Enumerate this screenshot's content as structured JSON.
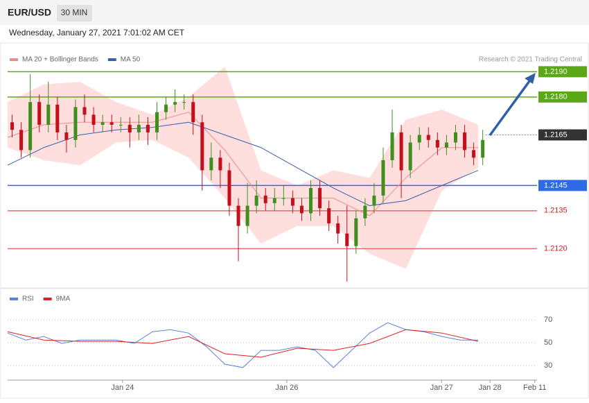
{
  "header": {
    "symbol": "EUR/USD",
    "timeframe": "30 MIN",
    "timestamp": "Wednesday, January 27, 2021 7:01:02 AM CET"
  },
  "chart_data": [
    {
      "type": "candlestick",
      "credit": "Research © 2021 Trading Central",
      "xlim": [
        0,
        117
      ],
      "ylim": [
        1.21045,
        1.21923
      ],
      "up_color": "#3f8f1f",
      "down_color": "#c4101c",
      "x": [
        1,
        3,
        5,
        7,
        9,
        11,
        13,
        15,
        17,
        19,
        21,
        23,
        25,
        27,
        29,
        31,
        33,
        35,
        37,
        39,
        41,
        43,
        45,
        47,
        49,
        51,
        53,
        55,
        57,
        59,
        61,
        63,
        65,
        67,
        69,
        71,
        73,
        75,
        77,
        79,
        81,
        83,
        85,
        87,
        89,
        91,
        93,
        95,
        97,
        99,
        101,
        103,
        105
      ],
      "open": [
        1.217,
        1.2167,
        1.2159,
        1.2178,
        1.2169,
        1.2177,
        1.2166,
        1.2163,
        1.2176,
        1.2173,
        1.2169,
        1.217,
        1.2169,
        1.2169,
        1.2166,
        1.2169,
        1.2166,
        1.2174,
        1.2177,
        1.2178,
        1.2178,
        1.217,
        1.2151,
        1.2156,
        1.2151,
        1.2137,
        1.2129,
        1.2137,
        1.2141,
        1.2138,
        1.214,
        1.214,
        1.2137,
        1.2134,
        1.2144,
        1.2136,
        1.213,
        1.2126,
        1.2121,
        1.2132,
        1.2137,
        1.2141,
        1.2155,
        1.2166,
        1.2151,
        1.2162,
        1.2165,
        1.2163,
        1.216,
        1.2162,
        1.2166,
        1.2159,
        1.2156
      ],
      "high": [
        1.2173,
        1.217,
        1.2189,
        1.2181,
        1.2186,
        1.218,
        1.2169,
        1.2179,
        1.2181,
        1.2176,
        1.2173,
        1.2173,
        1.2172,
        1.2172,
        1.2173,
        1.2172,
        1.2178,
        1.218,
        1.2183,
        1.2181,
        1.2181,
        1.2173,
        1.2162,
        1.2159,
        1.2154,
        1.214,
        1.2146,
        1.2147,
        1.2144,
        1.2144,
        1.2145,
        1.2143,
        1.214,
        1.2147,
        1.2147,
        1.2139,
        1.2133,
        1.2137,
        1.2135,
        1.214,
        1.2146,
        1.216,
        1.2175,
        1.2169,
        1.2165,
        1.2168,
        1.2168,
        1.2166,
        1.2165,
        1.2169,
        1.2169,
        1.2162,
        1.2167
      ],
      "low": [
        1.2164,
        1.2156,
        1.2156,
        1.2166,
        1.2166,
        1.2163,
        1.2158,
        1.216,
        1.217,
        1.2166,
        1.2166,
        1.2166,
        1.2166,
        1.216,
        1.2163,
        1.2161,
        1.2163,
        1.2171,
        1.2174,
        1.2175,
        1.2165,
        1.2143,
        1.2147,
        1.2144,
        1.2133,
        1.2115,
        1.2126,
        1.2134,
        1.2135,
        1.2135,
        1.2137,
        1.2134,
        1.2131,
        1.2131,
        1.2133,
        1.2127,
        1.2122,
        1.2107,
        1.2118,
        1.2129,
        1.2134,
        1.2138,
        1.2152,
        1.214,
        1.2148,
        1.2159,
        1.216,
        1.2157,
        1.2157,
        1.2159,
        1.2156,
        1.2153,
        1.2153
      ],
      "close": [
        1.2167,
        1.2159,
        1.2178,
        1.2169,
        1.2177,
        1.2166,
        1.2163,
        1.2176,
        1.2173,
        1.2169,
        1.217,
        1.2169,
        1.2169,
        1.2166,
        1.2169,
        1.2166,
        1.2174,
        1.2177,
        1.2178,
        1.2178,
        1.217,
        1.2151,
        1.2156,
        1.2151,
        1.2137,
        1.2129,
        1.2137,
        1.2141,
        1.2138,
        1.214,
        1.214,
        1.2137,
        1.2134,
        1.2144,
        1.2136,
        1.213,
        1.2126,
        1.2121,
        1.2132,
        1.2137,
        1.2141,
        1.2155,
        1.2166,
        1.2151,
        1.2162,
        1.2165,
        1.2163,
        1.216,
        1.2162,
        1.2166,
        1.2159,
        1.2156,
        1.2163
      ],
      "series": [
        {
          "name": "MA 20 + Bollinger Bands",
          "color": "#f08a8a",
          "band_color": "#ffdede",
          "x": [
            0,
            8,
            16,
            24,
            32,
            40,
            48,
            56,
            64,
            72,
            80,
            88,
            96,
            104
          ],
          "values": [
            1.2164,
            1.2169,
            1.217,
            1.217,
            1.217,
            1.2174,
            1.2159,
            1.214,
            1.214,
            1.214,
            1.2133,
            1.2148,
            1.216,
            1.216
          ],
          "upper": [
            1.2178,
            1.2185,
            1.2186,
            1.2178,
            1.2173,
            1.218,
            1.2192,
            1.2151,
            1.2145,
            1.2151,
            1.2148,
            1.2171,
            1.2175,
            1.2169
          ],
          "lower": [
            1.216,
            1.2155,
            1.2153,
            1.2162,
            1.2163,
            1.2156,
            1.214,
            1.2122,
            1.2129,
            1.2129,
            1.2118,
            1.2112,
            1.2143,
            1.2152
          ]
        },
        {
          "name": "MA 50",
          "color": "#3a5ea8",
          "x": [
            0,
            8,
            16,
            24,
            32,
            40,
            48,
            56,
            64,
            72,
            80,
            88,
            96,
            104
          ],
          "values": [
            1.2153,
            1.216,
            1.2165,
            1.2167,
            1.2168,
            1.217,
            1.2165,
            1.216,
            1.2152,
            1.2144,
            1.2137,
            1.2139,
            1.2145,
            1.2151
          ]
        }
      ],
      "levels": [
        {
          "value": 1.219,
          "label": "1.2190",
          "color": "#5aa818",
          "style": "solid",
          "boxed": true
        },
        {
          "value": 1.218,
          "label": "1.2180",
          "color": "#5aa818",
          "style": "solid",
          "boxed": true
        },
        {
          "value": 1.2165,
          "label": "1.2165",
          "color": "#333333",
          "style": "dotted",
          "boxed": true
        },
        {
          "value": 1.2145,
          "label": "1.2145",
          "color": "#2e6ae6",
          "style": "solid",
          "boxed": true
        },
        {
          "value": 1.2135,
          "label": "1.2135",
          "color": "#e86a6a",
          "style": "solid",
          "boxed": false
        },
        {
          "value": 1.212,
          "label": "1.2120",
          "color": "#e86a6a",
          "style": "solid",
          "boxed": false
        }
      ]
    },
    {
      "type": "line",
      "xlim": [
        0,
        117
      ],
      "ylim": [
        19,
        83
      ],
      "yticks": [
        30,
        50,
        70
      ],
      "grid": true,
      "xticks": [
        {
          "value": 25.4,
          "label": "Jan 24"
        },
        {
          "value": 61.7,
          "label": "Jan 26"
        },
        {
          "value": 95.9,
          "label": "Jan 27"
        },
        {
          "value": 106.6,
          "label": "Jan 28"
        },
        {
          "value": 116.5,
          "label": "Feb 11"
        }
      ],
      "series": [
        {
          "name": "RSI",
          "color": "#5b80d8",
          "x": [
            0,
            4,
            8,
            12,
            16,
            20,
            24,
            28,
            32,
            36,
            40,
            44,
            48,
            52,
            56,
            60,
            64,
            68,
            72,
            76,
            80,
            84,
            88,
            92,
            96,
            100,
            104
          ],
          "values": [
            58.5,
            52.4,
            55.5,
            49.4,
            52.4,
            52.4,
            52.4,
            49.4,
            59.7,
            61.5,
            58.5,
            46.4,
            31.2,
            28.2,
            43.3,
            43.3,
            46.4,
            43.3,
            28.2,
            43.3,
            58.5,
            67.6,
            61.5,
            59.7,
            55.5,
            52.4,
            52.4
          ]
        },
        {
          "name": "9MA",
          "color": "#e02020",
          "x": [
            0,
            8,
            16,
            24,
            32,
            40,
            48,
            56,
            64,
            72,
            80,
            88,
            96,
            104
          ],
          "values": [
            59.7,
            52.4,
            51.2,
            51.2,
            49.4,
            55.5,
            40.3,
            37.3,
            45.2,
            43.3,
            49.4,
            61.5,
            58.5,
            51.2
          ]
        }
      ]
    }
  ]
}
